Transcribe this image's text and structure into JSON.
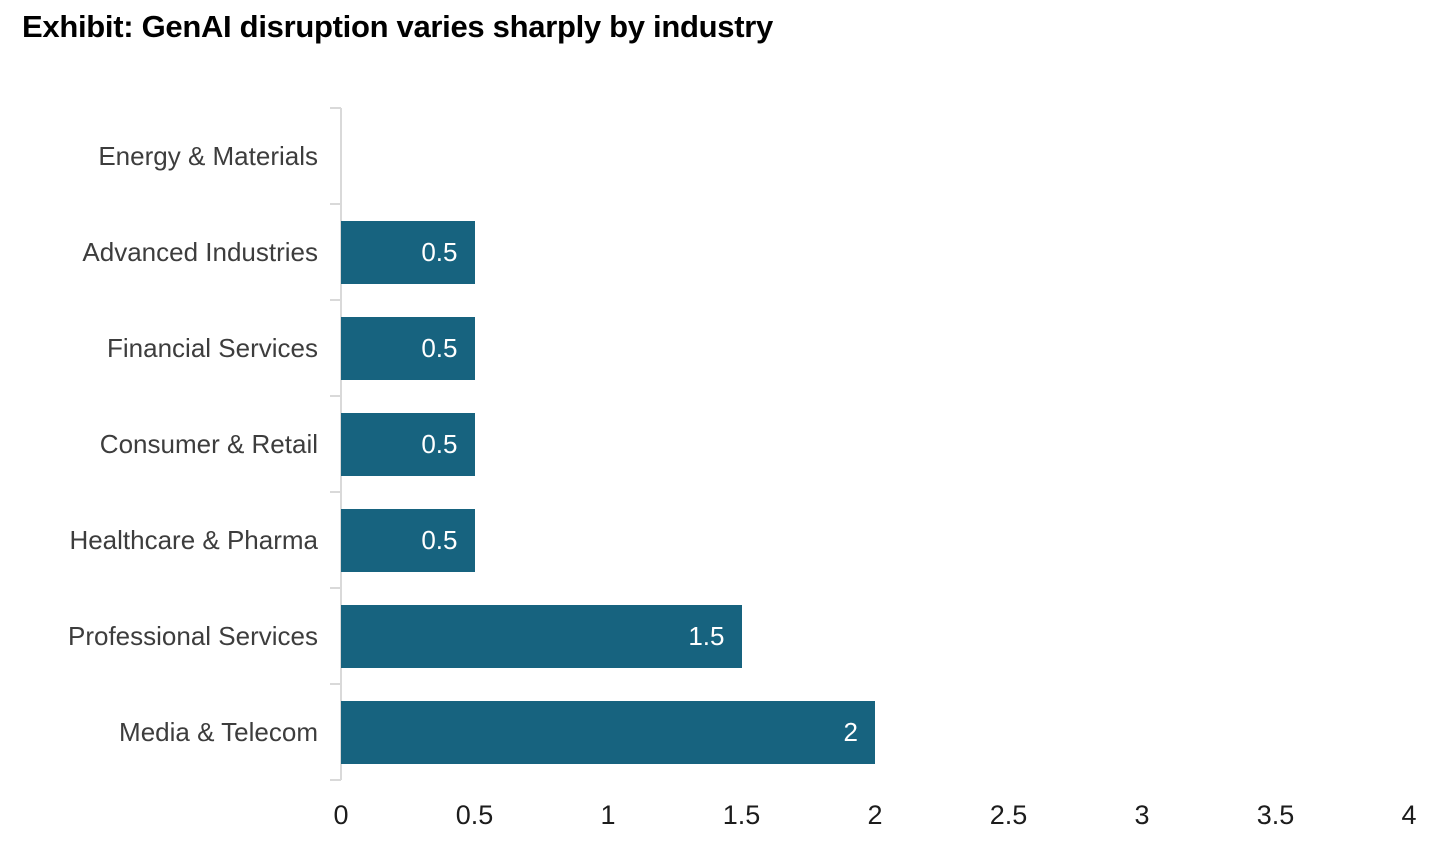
{
  "title": "Exhibit: GenAI disruption varies sharply by industry",
  "chart_data": {
    "type": "bar",
    "orientation": "horizontal",
    "title": "Exhibit: GenAI disruption varies sharply by industry",
    "categories": [
      "Energy & Materials",
      "Advanced Industries",
      "Financial Services",
      "Consumer & Retail",
      "Healthcare & Pharma",
      "Professional Services",
      "Media & Telecom"
    ],
    "values": [
      0,
      0.5,
      0.5,
      0.5,
      0.5,
      1.5,
      2
    ],
    "bar_labels": [
      "",
      "0.5",
      "0.5",
      "0.5",
      "0.5",
      "1.5",
      "2"
    ],
    "xlabel": "",
    "ylabel": "",
    "xlim": [
      0,
      4
    ],
    "x_tick_labels": [
      "0",
      "0.5",
      "1",
      "1.5",
      "2",
      "2.5",
      "3",
      "3.5",
      "4"
    ],
    "grid": false,
    "legend": false,
    "bar_color": "#17637f",
    "axis_color": "#d9d9d9",
    "value_label_color": "#ffffff",
    "category_label_color": "#3d3d3d",
    "tick_label_color": "#1c1c1c"
  }
}
